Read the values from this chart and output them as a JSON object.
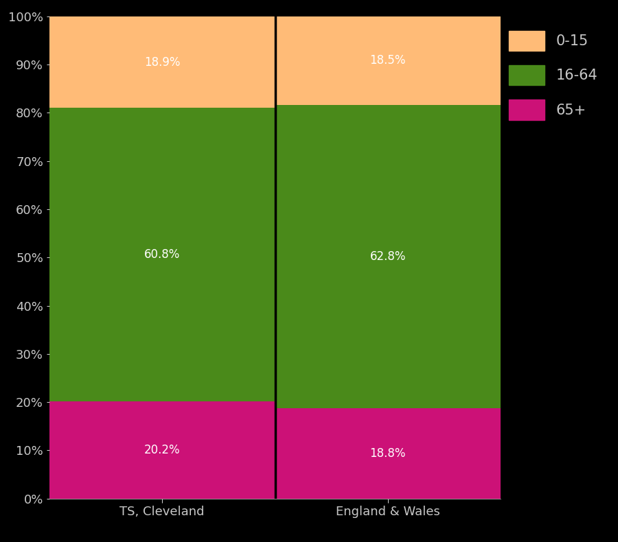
{
  "categories": [
    "TS, Cleveland",
    "England & Wales"
  ],
  "age_0_15": [
    18.9,
    18.5
  ],
  "age_16_64": [
    60.8,
    62.8
  ],
  "age_65plus": [
    20.2,
    18.8
  ],
  "colors": {
    "0-15": "#FFBB77",
    "16-64": "#4A8A1A",
    "65+": "#CC1177"
  },
  "legend_labels": [
    "0-15",
    "16-64",
    "65+"
  ],
  "ylabel_ticks": [
    "0%",
    "10%",
    "20%",
    "30%",
    "40%",
    "50%",
    "60%",
    "70%",
    "80%",
    "90%",
    "100%"
  ],
  "yticks": [
    0,
    10,
    20,
    30,
    40,
    50,
    60,
    70,
    80,
    90,
    100
  ],
  "background_color": "#000000",
  "text_color": "#c8c8c8",
  "label_text_color": "#ffffff",
  "separator_color": "#000000",
  "label_fontsize": 12,
  "tick_fontsize": 13,
  "legend_fontsize": 15,
  "bar_width": 1.0
}
